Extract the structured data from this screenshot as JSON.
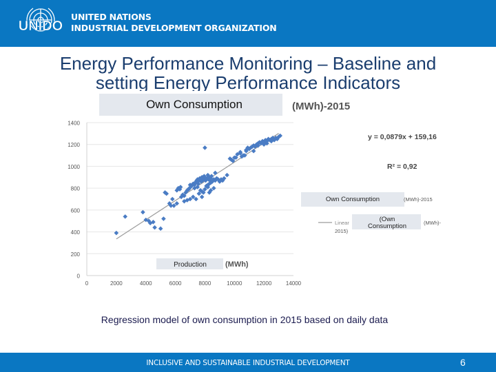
{
  "header": {
    "logo_text": "UNIDO",
    "org_line1": "UNITED NATIONS",
    "org_line2": "INDUSTRIAL DEVELOPMENT ORGANIZATION"
  },
  "slide": {
    "title_line1": "Energy Performance Monitoring – Baseline and",
    "title_line2": "setting Energy Performance Indicators",
    "caption": "Regression model of own consumption in 2015 based on daily data"
  },
  "footer": {
    "text": "INCLUSIVE AND SUSTAINABLE INDUSTRIAL DEVELOPMENT",
    "page_number": "6"
  },
  "colors": {
    "brand": "#0a77c2",
    "point": "#4a7cc4",
    "title": "#1a3d6e"
  },
  "chart_data": {
    "type": "scatter",
    "title": "Own Consumption",
    "title_suffix": "(MWh)-2015",
    "xlabel": "Production",
    "xlabel_unit": "(MWh)",
    "xlim": [
      0,
      14000
    ],
    "ylim": [
      0,
      1400
    ],
    "x_ticks": [
      "0",
      "2000",
      "4000",
      "6000",
      "8000",
      "10000",
      "12000",
      "14000"
    ],
    "y_ticks": [
      "0",
      "200",
      "400",
      "600",
      "800",
      "1000",
      "1200",
      "1400"
    ],
    "equation": "y = 0,0879x + 159,16",
    "r_squared": "R² = 0,92",
    "legend": {
      "series_name": "Own Consumption",
      "series_suffix": "(MWh)-2015",
      "trend_prefix": "Linear",
      "trend_open": "(Own",
      "trend_name": "Consumption",
      "trend_unit": "(MWh)-",
      "trend_year": "2015)"
    },
    "trendline": {
      "slope": 0.0879,
      "intercept": 159.16,
      "x_range": [
        2000,
        13000
      ]
    },
    "series": [
      {
        "name": "Own Consumption (MWh)-2015",
        "x": [
          2000,
          2600,
          3800,
          4000,
          4200,
          4300,
          4500,
          4600,
          5000,
          5200,
          6100,
          6200,
          6300,
          6350,
          5300,
          5400,
          5600,
          5700,
          5800,
          6400,
          6500,
          6600,
          6700,
          6800,
          6900,
          6950,
          7000,
          7100,
          7200,
          7300,
          7350,
          7400,
          7450,
          7500,
          7550,
          7600,
          7650,
          7700,
          7750,
          7800,
          7850,
          7900,
          7950,
          8000,
          8050,
          8100,
          8150,
          8200,
          8250,
          8300,
          8350,
          8400,
          8450,
          8500,
          8600,
          8700,
          8800,
          8900,
          9000,
          9200,
          9300,
          9100,
          7300,
          7500,
          7700,
          7800,
          8000,
          8100,
          8200,
          8300,
          7900,
          7600,
          8400,
          6800,
          7000,
          7200,
          6600,
          5900,
          6100,
          7400,
          8000,
          8200,
          8400,
          8600,
          9500,
          10000,
          10400,
          10600,
          10800,
          11000,
          11100,
          11200,
          11300,
          11400,
          11500,
          11600,
          11700,
          11800,
          11900,
          12000,
          12100,
          12200,
          12300,
          12400,
          12500,
          12600,
          12700,
          12800,
          12900,
          13000,
          13100,
          10200,
          10800,
          11200,
          10400,
          11600,
          11000,
          12000,
          12500,
          12200,
          9800,
          10900,
          11300,
          10700,
          11900,
          7800,
          8700,
          8300,
          9700,
          10500,
          10100,
          9900
        ],
        "y": [
          390,
          540,
          580,
          510,
          500,
          480,
          490,
          440,
          430,
          520,
          780,
          800,
          790,
          810,
          760,
          750,
          660,
          640,
          700,
          720,
          740,
          730,
          760,
          780,
          790,
          800,
          830,
          820,
          840,
          830,
          850,
          860,
          870,
          880,
          840,
          870,
          890,
          880,
          860,
          900,
          870,
          880,
          910,
          900,
          870,
          880,
          890,
          920,
          880,
          900,
          870,
          890,
          910,
          860,
          880,
          870,
          890,
          880,
          860,
          870,
          890,
          880,
          800,
          810,
          780,
          770,
          790,
          820,
          830,
          840,
          760,
          750,
          850,
          690,
          700,
          720,
          680,
          640,
          660,
          700,
          1170,
          810,
          780,
          800,
          920,
          1080,
          1130,
          1100,
          1140,
          1160,
          1170,
          1180,
          1190,
          1180,
          1200,
          1210,
          1220,
          1210,
          1230,
          1220,
          1240,
          1230,
          1250,
          1240,
          1250,
          1260,
          1240,
          1260,
          1250,
          1270,
          1280,
          1110,
          1150,
          1180,
          1120,
          1190,
          1160,
          1200,
          1230,
          1210,
          1060,
          1170,
          1140,
          1100,
          1220,
          720,
          940,
          760,
          1070,
          1090,
          1080,
          1050
        ]
      }
    ]
  }
}
